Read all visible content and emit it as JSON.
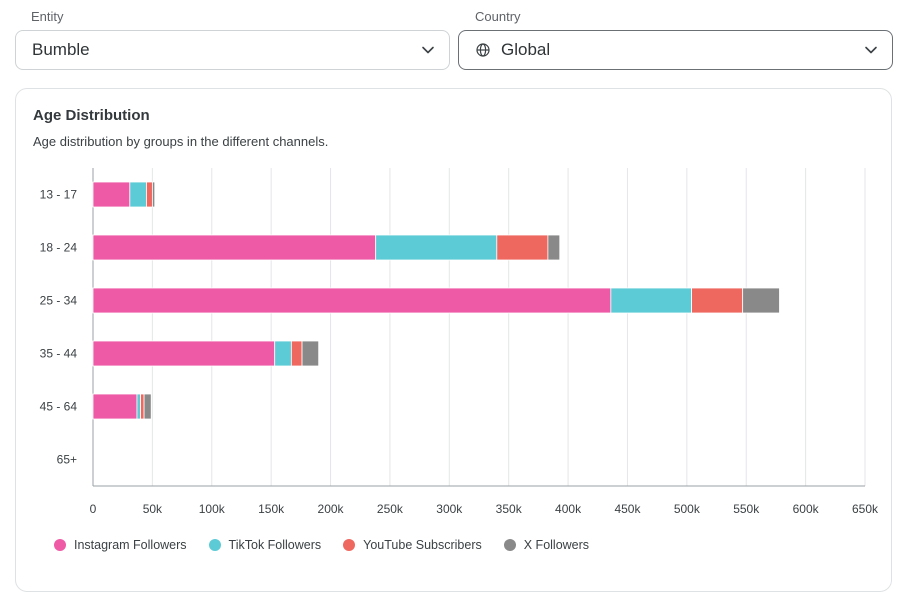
{
  "filters": {
    "entity": {
      "label": "Entity",
      "value": "Bumble"
    },
    "country": {
      "label": "Country",
      "value": "Global"
    }
  },
  "card": {
    "title": "Age Distribution",
    "subtitle": "Age distribution by groups in the different channels."
  },
  "chart_data": {
    "type": "bar",
    "orientation": "horizontal",
    "stacked": true,
    "categories": [
      "13 - 17",
      "18 - 24",
      "25 - 34",
      "35 - 44",
      "45 - 64",
      "65+"
    ],
    "series": [
      {
        "name": "Instagram Followers",
        "color": "#ef5aa6",
        "values": [
          31000,
          238000,
          436000,
          153000,
          37000,
          0
        ]
      },
      {
        "name": "TikTok Followers",
        "color": "#5ccbd6",
        "values": [
          14000,
          102000,
          68000,
          14000,
          3000,
          0
        ]
      },
      {
        "name": "YouTube Subscribers",
        "color": "#ef6860",
        "values": [
          5000,
          43000,
          43000,
          9000,
          3000,
          0
        ]
      },
      {
        "name": "X Followers",
        "color": "#898989",
        "values": [
          2000,
          10000,
          31000,
          14000,
          6000,
          0
        ]
      }
    ],
    "xlim": [
      0,
      650000
    ],
    "xticks": [
      0,
      50000,
      100000,
      150000,
      200000,
      250000,
      300000,
      350000,
      400000,
      450000,
      500000,
      550000,
      600000,
      650000
    ],
    "xtick_labels": [
      "0",
      "50k",
      "100k",
      "150k",
      "200k",
      "250k",
      "300k",
      "350k",
      "400k",
      "450k",
      "500k",
      "550k",
      "600k",
      "650k"
    ],
    "grid": true,
    "legend_position": "bottom-left"
  }
}
